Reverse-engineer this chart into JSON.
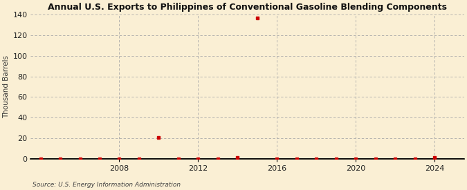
{
  "title": "Annual U.S. Exports to Philippines of Conventional Gasoline Blending Components",
  "ylabel": "Thousand Barrels",
  "source": "Source: U.S. Energy Information Administration",
  "background_color": "#faefd4",
  "marker_color": "#cc0000",
  "grid_color": "#aaaaaa",
  "xlim": [
    2003.5,
    2025.5
  ],
  "ylim": [
    0,
    140
  ],
  "yticks": [
    0,
    20,
    40,
    60,
    80,
    100,
    120,
    140
  ],
  "xticks": [
    2008,
    2012,
    2016,
    2020,
    2024
  ],
  "data_years": [
    2004,
    2005,
    2006,
    2007,
    2008,
    2009,
    2010,
    2011,
    2012,
    2013,
    2014,
    2015,
    2016,
    2017,
    2018,
    2019,
    2020,
    2021,
    2022,
    2023,
    2024
  ],
  "data_values": [
    0,
    0,
    0,
    0,
    0,
    0,
    21,
    0,
    0,
    0,
    1,
    137,
    0,
    0,
    0,
    0,
    0,
    0,
    0,
    0,
    1
  ]
}
